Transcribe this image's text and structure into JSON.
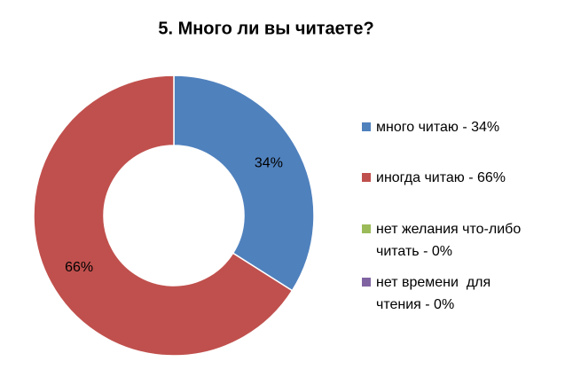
{
  "chart_data": {
    "type": "donut",
    "title": "5. Много ли вы читаете?",
    "categories": [
      "много читаю - 34%",
      "иногда читаю - 66%",
      "нет желания что-либо читать - 0%",
      "нет времени  для чтения - 0%"
    ],
    "values": [
      34,
      66,
      0,
      0
    ],
    "value_labels": [
      "34%",
      "66%",
      null,
      null
    ],
    "colors": [
      "#4f81bd",
      "#c0504d",
      "#9bbb59",
      "#8064a2"
    ],
    "legend": "right"
  }
}
